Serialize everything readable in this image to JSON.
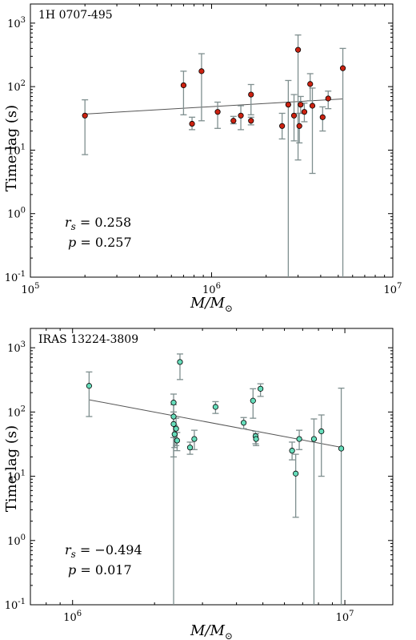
{
  "chart_data": [
    {
      "type": "scatter",
      "title": "1H 0707-495",
      "xlabel": "M/M⊙",
      "ylabel": "Time lag (s)",
      "xscale": "log",
      "yscale": "log",
      "xlim": [
        100000,
        10000000
      ],
      "ylim": [
        0.1,
        2000
      ],
      "x_ticks": [
        100000,
        1000000,
        10000000
      ],
      "x_tick_labels": [
        {
          "base": "10",
          "exp": "5"
        },
        {
          "base": "10",
          "exp": "6"
        },
        {
          "base": "10",
          "exp": "7"
        }
      ],
      "y_ticks": [
        0.1,
        1,
        10,
        100,
        1000
      ],
      "y_tick_labels": [
        {
          "base": "10",
          "exp": "-1"
        },
        {
          "base": "10",
          "exp": "0"
        },
        {
          "base": "10",
          "exp": "1"
        },
        {
          "base": "10",
          "exp": "2"
        },
        {
          "base": "10",
          "exp": "3"
        }
      ],
      "marker_color": "#cc2211",
      "stats": {
        "rs": "r_s = 0.258",
        "p": "p = 0.257"
      },
      "fit": {
        "x": [
          200000,
          5300000
        ],
        "y": [
          37,
          64
        ]
      },
      "points": [
        {
          "x": 200000,
          "y": 35,
          "ylo": 8.5,
          "yhi": 62
        },
        {
          "x": 700000,
          "y": 105,
          "ylo": 36,
          "yhi": 175
        },
        {
          "x": 780000,
          "y": 26,
          "ylo": 21,
          "yhi": 33
        },
        {
          "x": 880000,
          "y": 175,
          "ylo": 29,
          "yhi": 330
        },
        {
          "x": 1080000,
          "y": 40,
          "ylo": 22,
          "yhi": 57
        },
        {
          "x": 1320000,
          "y": 29,
          "ylo": 26,
          "yhi": 34
        },
        {
          "x": 1450000,
          "y": 35,
          "ylo": 21,
          "yhi": 50
        },
        {
          "x": 1650000,
          "y": 75,
          "ylo": 36,
          "yhi": 108
        },
        {
          "x": 1650000,
          "y": 29,
          "ylo": 25,
          "yhi": 33
        },
        {
          "x": 2450000,
          "y": 24,
          "ylo": 15,
          "yhi": 38
        },
        {
          "x": 2650000,
          "y": 52,
          "ylo": 0.1,
          "yhi": 125
        },
        {
          "x": 2850000,
          "y": 35,
          "ylo": 14,
          "yhi": 75
        },
        {
          "x": 3000000,
          "y": 380,
          "ylo": 7,
          "yhi": 650
        },
        {
          "x": 3050000,
          "y": 24,
          "ylo": 13,
          "yhi": 38
        },
        {
          "x": 3100000,
          "y": 52,
          "ylo": 38,
          "yhi": 70
        },
        {
          "x": 3250000,
          "y": 40,
          "ylo": 28,
          "yhi": 55
        },
        {
          "x": 3500000,
          "y": 110,
          "ylo": 60,
          "yhi": 160
        },
        {
          "x": 3600000,
          "y": 50,
          "ylo": 4.3,
          "yhi": 95
        },
        {
          "x": 4100000,
          "y": 33,
          "ylo": 20,
          "yhi": 48
        },
        {
          "x": 4400000,
          "y": 65,
          "ylo": 45,
          "yhi": 85
        },
        {
          "x": 5300000,
          "y": 195,
          "ylo": 0.1,
          "yhi": 400
        }
      ]
    },
    {
      "type": "scatter",
      "title": "IRAS 13224-3809",
      "xlabel": "M/M⊙",
      "ylabel": "Time lag (s)",
      "xscale": "log",
      "yscale": "log",
      "xlim": [
        700000,
        15000000
      ],
      "ylim": [
        0.1,
        2000
      ],
      "x_ticks": [
        1000000,
        10000000
      ],
      "x_tick_labels": [
        {
          "base": "10",
          "exp": "6"
        },
        {
          "base": "10",
          "exp": "7"
        }
      ],
      "y_ticks": [
        0.1,
        1,
        10,
        100,
        1000
      ],
      "y_tick_labels": [
        {
          "base": "10",
          "exp": "-1"
        },
        {
          "base": "10",
          "exp": "0"
        },
        {
          "base": "10",
          "exp": "1"
        },
        {
          "base": "10",
          "exp": "2"
        },
        {
          "base": "10",
          "exp": "3"
        }
      ],
      "marker_color": "#66ddbb",
      "stats": {
        "rs": "r_s = −0.494",
        "p": "p = 0.017"
      },
      "fit": {
        "x": [
          1150000,
          9800000
        ],
        "y": [
          155,
          28
        ]
      },
      "points": [
        {
          "x": 1150000,
          "y": 255,
          "ylo": 85,
          "yhi": 420
        },
        {
          "x": 2350000,
          "y": 140,
          "ylo": 0.1,
          "yhi": 190
        },
        {
          "x": 2350000,
          "y": 85,
          "ylo": 40,
          "yhi": 130
        },
        {
          "x": 2350000,
          "y": 65,
          "ylo": 20,
          "yhi": 100
        },
        {
          "x": 2370000,
          "y": 45,
          "ylo": 28,
          "yhi": 62
        },
        {
          "x": 2400000,
          "y": 55,
          "ylo": 30,
          "yhi": 80
        },
        {
          "x": 2420000,
          "y": 36,
          "ylo": 25,
          "yhi": 48
        },
        {
          "x": 2480000,
          "y": 600,
          "ylo": 320,
          "yhi": 800
        },
        {
          "x": 2700000,
          "y": 28,
          "ylo": 22,
          "yhi": 34
        },
        {
          "x": 2800000,
          "y": 38,
          "ylo": 26,
          "yhi": 52
        },
        {
          "x": 3350000,
          "y": 120,
          "ylo": 95,
          "yhi": 145
        },
        {
          "x": 4250000,
          "y": 68,
          "ylo": 55,
          "yhi": 82
        },
        {
          "x": 4600000,
          "y": 150,
          "ylo": 80,
          "yhi": 230
        },
        {
          "x": 4700000,
          "y": 42,
          "ylo": 32,
          "yhi": 50
        },
        {
          "x": 4720000,
          "y": 38,
          "ylo": 30,
          "yhi": 46
        },
        {
          "x": 4900000,
          "y": 230,
          "ylo": 175,
          "yhi": 275
        },
        {
          "x": 6400000,
          "y": 25,
          "ylo": 18,
          "yhi": 34
        },
        {
          "x": 6600000,
          "y": 11,
          "ylo": 2.3,
          "yhi": 22
        },
        {
          "x": 6800000,
          "y": 38,
          "ylo": 26,
          "yhi": 52
        },
        {
          "x": 7700000,
          "y": 38,
          "ylo": 0.1,
          "yhi": 78
        },
        {
          "x": 8200000,
          "y": 50,
          "ylo": 10,
          "yhi": 90
        },
        {
          "x": 9700000,
          "y": 27,
          "ylo": 0.1,
          "yhi": 235
        }
      ]
    }
  ]
}
